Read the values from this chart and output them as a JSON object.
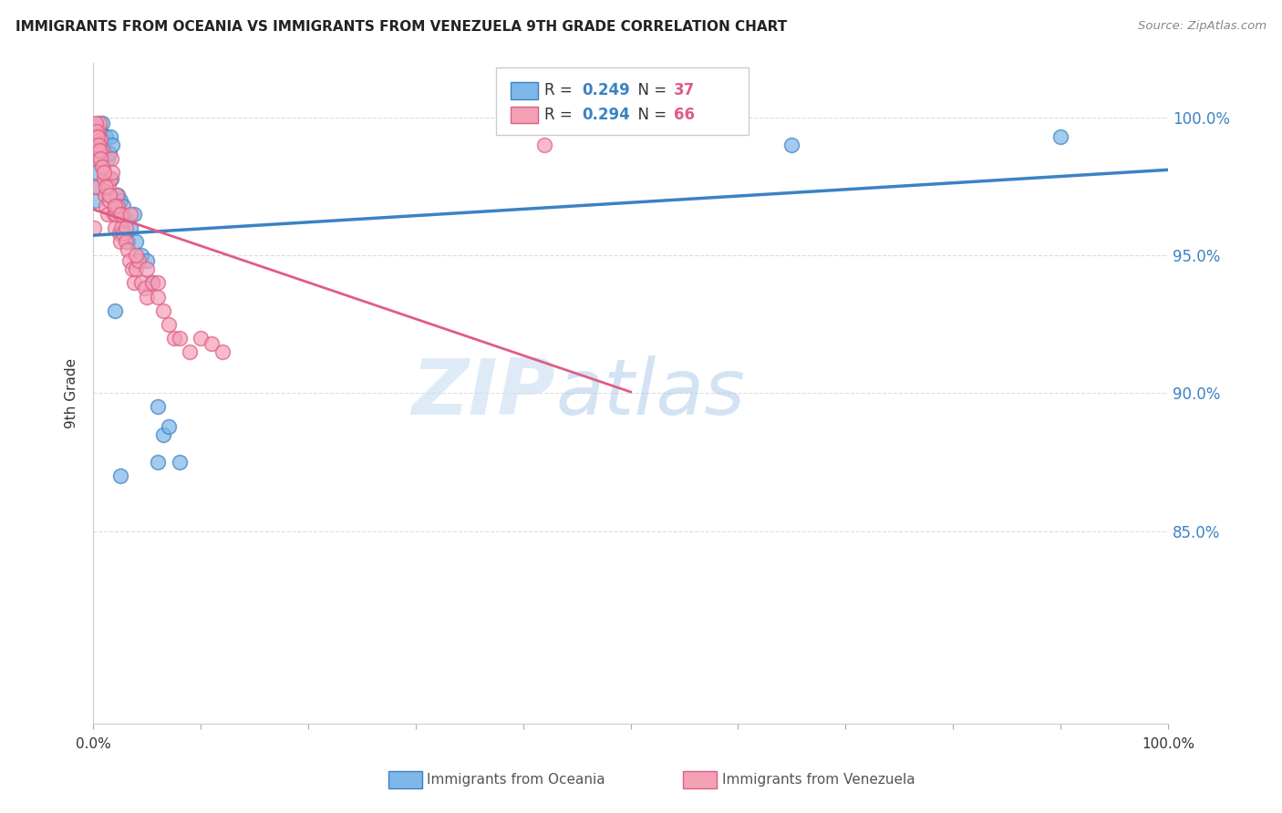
{
  "title": "IMMIGRANTS FROM OCEANIA VS IMMIGRANTS FROM VENEZUELA 9TH GRADE CORRELATION CHART",
  "source": "Source: ZipAtlas.com",
  "ylabel": "9th Grade",
  "ytick_labels": [
    "100.0%",
    "95.0%",
    "90.0%",
    "85.0%"
  ],
  "ytick_values": [
    1.0,
    0.95,
    0.9,
    0.85
  ],
  "xlim": [
    0.0,
    1.0
  ],
  "ylim": [
    0.78,
    1.02
  ],
  "legend_r_oceania": "0.249",
  "legend_n_oceania": "37",
  "legend_r_venezuela": "0.294",
  "legend_n_venezuela": "66",
  "color_oceania": "#7EB6E8",
  "color_venezuela": "#F4A0B5",
  "trend_color_oceania": "#3B82C4",
  "trend_color_venezuela": "#E05C85",
  "oceania_x": [
    0.002,
    0.003,
    0.004,
    0.005,
    0.006,
    0.007,
    0.008,
    0.008,
    0.01,
    0.012,
    0.013,
    0.015,
    0.016,
    0.017,
    0.018,
    0.02,
    0.022,
    0.023,
    0.025,
    0.028,
    0.03,
    0.032,
    0.035,
    0.038,
    0.04,
    0.045,
    0.05,
    0.055,
    0.06,
    0.065,
    0.07,
    0.08,
    0.02,
    0.025,
    0.06,
    0.65,
    0.9
  ],
  "oceania_y": [
    0.97,
    0.98,
    0.99,
    0.975,
    0.985,
    0.995,
    0.998,
    0.992,
    0.988,
    0.993,
    0.985,
    0.987,
    0.993,
    0.978,
    0.99,
    0.968,
    0.965,
    0.972,
    0.97,
    0.968,
    0.963,
    0.955,
    0.96,
    0.965,
    0.955,
    0.95,
    0.948,
    0.94,
    0.895,
    0.885,
    0.888,
    0.875,
    0.93,
    0.87,
    0.875,
    0.99,
    0.993
  ],
  "venezuela_x": [
    0.001,
    0.002,
    0.003,
    0.004,
    0.005,
    0.006,
    0.007,
    0.008,
    0.009,
    0.01,
    0.011,
    0.012,
    0.013,
    0.014,
    0.015,
    0.016,
    0.017,
    0.018,
    0.019,
    0.02,
    0.021,
    0.022,
    0.023,
    0.024,
    0.025,
    0.026,
    0.027,
    0.028,
    0.03,
    0.032,
    0.034,
    0.036,
    0.038,
    0.04,
    0.042,
    0.045,
    0.048,
    0.05,
    0.055,
    0.06,
    0.065,
    0.07,
    0.075,
    0.08,
    0.09,
    0.1,
    0.11,
    0.12,
    0.002,
    0.003,
    0.004,
    0.005,
    0.006,
    0.007,
    0.008,
    0.01,
    0.012,
    0.015,
    0.02,
    0.025,
    0.03,
    0.035,
    0.04,
    0.05,
    0.06,
    0.42
  ],
  "venezuela_y": [
    0.96,
    0.975,
    0.985,
    0.99,
    0.995,
    0.998,
    0.992,
    0.988,
    0.982,
    0.978,
    0.972,
    0.968,
    0.965,
    0.975,
    0.97,
    0.978,
    0.985,
    0.98,
    0.965,
    0.96,
    0.965,
    0.972,
    0.968,
    0.958,
    0.955,
    0.96,
    0.965,
    0.958,
    0.955,
    0.952,
    0.948,
    0.945,
    0.94,
    0.945,
    0.948,
    0.94,
    0.938,
    0.935,
    0.94,
    0.935,
    0.93,
    0.925,
    0.92,
    0.92,
    0.915,
    0.92,
    0.918,
    0.915,
    0.998,
    0.995,
    0.993,
    0.99,
    0.988,
    0.985,
    0.982,
    0.98,
    0.975,
    0.972,
    0.968,
    0.965,
    0.96,
    0.965,
    0.95,
    0.945,
    0.94,
    0.99
  ],
  "watermark_zip": "ZIP",
  "watermark_atlas": "atlas",
  "grid_color": "#DDDDDD",
  "background_color": "#FFFFFF"
}
